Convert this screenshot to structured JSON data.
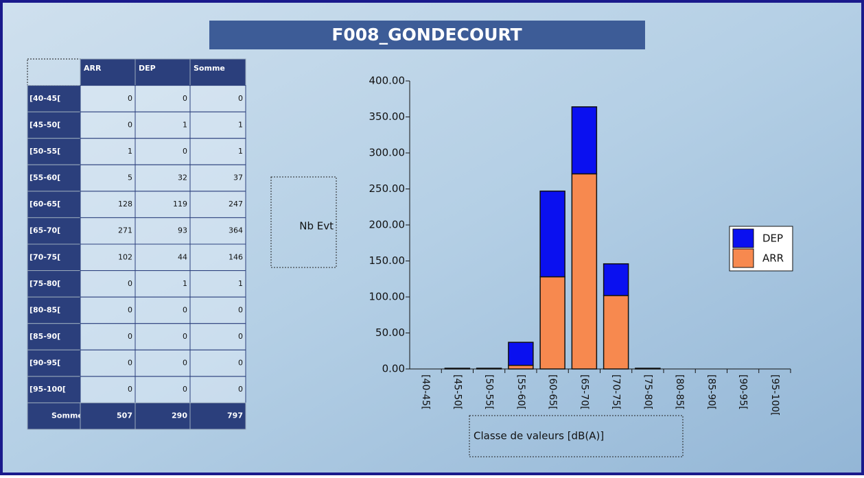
{
  "title": "F008_GONDECOURT",
  "table": {
    "header": [
      "ARR",
      "DEP",
      "Somme"
    ],
    "rows": [
      [
        "[40-45[",
        0,
        0,
        0
      ],
      [
        "[45-50[",
        0,
        1,
        1
      ],
      [
        "[50-55[",
        1,
        0,
        1
      ],
      [
        "[55-60[",
        5,
        32,
        37
      ],
      [
        "[60-65[",
        128,
        119,
        247
      ],
      [
        "[65-70[",
        271,
        93,
        364
      ],
      [
        "[70-75[",
        102,
        44,
        146
      ],
      [
        "[75-80[",
        0,
        1,
        1
      ],
      [
        "[80-85[",
        0,
        0,
        0
      ],
      [
        "[85-90[",
        0,
        0,
        0
      ],
      [
        "[90-95[",
        0,
        0,
        0
      ],
      [
        "[95-100[",
        0,
        0,
        0
      ],
      [
        "Somme",
        507,
        290,
        797
      ]
    ]
  },
  "chart_data": {
    "type": "stacked_bar",
    "x_label": "Classe de valeurs [dB(A)]",
    "y_label": "Nb Evt",
    "categories": [
      "[40-45[",
      "[45-50[",
      "[50-55[",
      "[55-60[",
      "[60-65[",
      "[65-70[",
      "[70-75[",
      "[75-80[",
      "[80-85[",
      "[85-90[",
      "[90-95[",
      "[95-100["
    ],
    "series": [
      {
        "name": "ARR",
        "color": "#f7894f",
        "values": [
          0,
          0,
          1,
          5,
          128,
          271,
          102,
          0,
          0,
          0,
          0,
          0
        ]
      },
      {
        "name": "DEP",
        "color": "#0a10f0",
        "values": [
          0,
          1,
          0,
          32,
          119,
          93,
          44,
          1,
          0,
          0,
          0,
          0
        ]
      }
    ],
    "ylim": [
      0,
      400
    ],
    "yticks": [
      {
        "value": 0,
        "label": "0.00"
      },
      {
        "value": 50,
        "label": "50.00"
      },
      {
        "value": 100,
        "label": "100.00"
      },
      {
        "value": 150,
        "label": "150.00"
      },
      {
        "value": 200,
        "label": "200.00"
      },
      {
        "value": 250,
        "label": "250.00"
      },
      {
        "value": 300,
        "label": "300.00"
      },
      {
        "value": 350,
        "label": "350.00"
      },
      {
        "value": 400,
        "label": "400.00"
      }
    ],
    "legend": "right"
  }
}
